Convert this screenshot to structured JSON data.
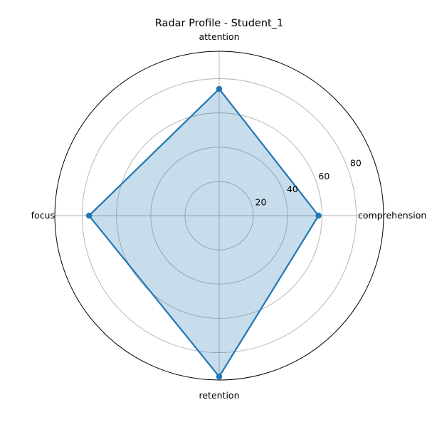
{
  "chart_data": {
    "type": "radar",
    "title": "Radar Profile - Student_1",
    "categories": [
      "comprehension",
      "attention",
      "focus",
      "retention"
    ],
    "series": [
      {
        "values": [
          58,
          74,
          76,
          94
        ]
      }
    ],
    "rlim": [
      0,
      96
    ],
    "r_ticks": [
      20,
      40,
      60,
      80
    ],
    "r_tick_labels": [
      "20",
      "40",
      "60",
      "80"
    ],
    "grid": true,
    "colors": {
      "line": "#1f77b4",
      "fill": "#1f77b4",
      "grid": "#b0b0b0"
    }
  }
}
